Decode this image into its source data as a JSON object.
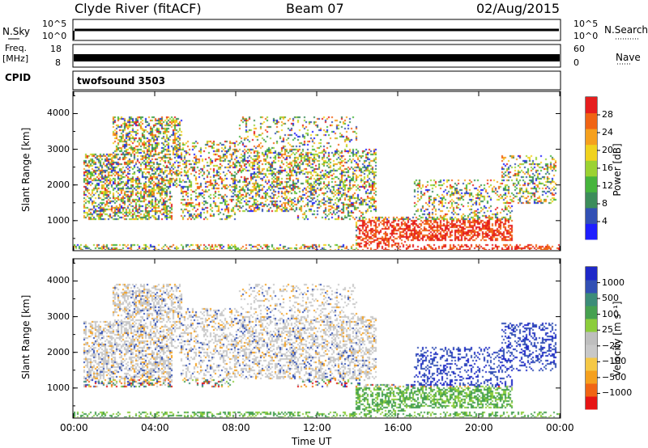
{
  "header": {
    "station": "Clyde River (fitACF)",
    "beam": "Beam 07",
    "date": "02/Aug/2015"
  },
  "panels": {
    "nsky": {
      "label": "N.Sky",
      "tick_top": "10^5",
      "tick_bottom": "10^0",
      "right_label": "N.Search",
      "right_tick_top": "10^5",
      "right_tick_bottom": "10^0"
    },
    "freq": {
      "label_line1": "Freq.",
      "label_line2": "[MHz]",
      "tick_top": "18",
      "tick_bottom": "8",
      "right_label": "Nave",
      "right_tick_top": "60",
      "right_tick_bottom": "0"
    },
    "cpid": {
      "label": "CPID",
      "value": "twofsound 3503"
    }
  },
  "colors": {
    "power": [
      "#1e1eff",
      "#3250b4",
      "#3c8c5a",
      "#46b43c",
      "#9bd232",
      "#f0d21e",
      "#f5a01e",
      "#f06414",
      "#e61e1e"
    ],
    "velocity": [
      "#e61414",
      "#f06414",
      "#f5a01e",
      "#f5c846",
      "#c8c8c8",
      "#bebebe",
      "#8ccd3c",
      "#46a050",
      "#3c8c78",
      "#3250b4",
      "#1e28c8"
    ]
  },
  "chart_data": [
    {
      "type": "heatmap",
      "title": "",
      "xlabel": "",
      "ylabel": "Slant Range [km]",
      "ylim": [
        180,
        4600
      ],
      "yticks": [
        "1000",
        "2000",
        "3000",
        "4000"
      ],
      "colorbar": {
        "label": "Power [dB]",
        "ticks": [
          "4",
          "8",
          "12",
          "16",
          "20",
          "24",
          "28"
        ],
        "range": [
          0,
          32
        ]
      }
    },
    {
      "type": "heatmap",
      "title": "",
      "xlabel": "Time UT",
      "ylabel": "Slant Range [km]",
      "ylim": [
        180,
        4600
      ],
      "yticks": [
        "1000",
        "2000",
        "3000",
        "4000"
      ],
      "xticks": [
        "00:00",
        "04:00",
        "08:00",
        "12:00",
        "16:00",
        "20:00",
        "00:00"
      ],
      "colorbar": {
        "label": "Velocity [m s⁻¹]",
        "ticks": [
          "1000",
          "500",
          "100",
          "25",
          "−25",
          "−100",
          "−500",
          "−1000"
        ]
      }
    }
  ]
}
